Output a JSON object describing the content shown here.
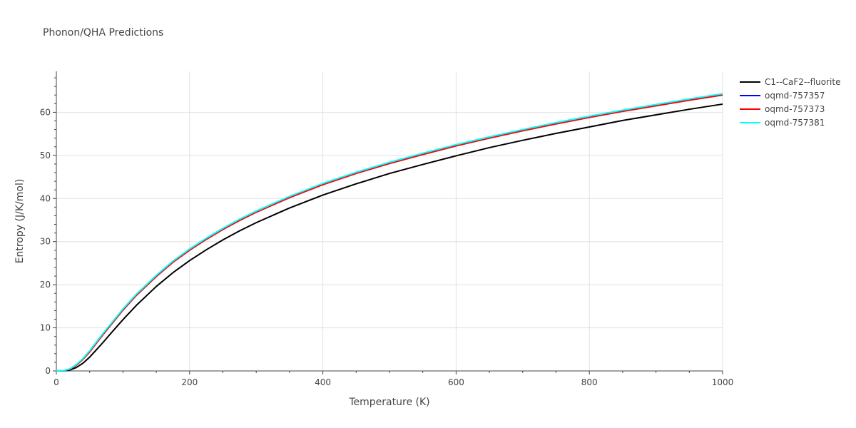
{
  "chart_data": {
    "type": "line",
    "title": "Phonon/QHA Predictions",
    "xlabel": "Temperature (K)",
    "ylabel": "Entropy (J/K/mol)",
    "xlim": [
      0,
      1000
    ],
    "ylim": [
      0,
      69.5
    ],
    "xticks": [
      0,
      200,
      400,
      600,
      800,
      1000
    ],
    "yticks": [
      0,
      10,
      20,
      30,
      40,
      50,
      60
    ],
    "grid": true,
    "legend_position": "top-right",
    "series": [
      {
        "name": "C1--CaF2--fluorite",
        "color": "#000000",
        "x": [
          0,
          10,
          20,
          30,
          40,
          50,
          60,
          70,
          80,
          100,
          120,
          150,
          175,
          200,
          225,
          250,
          275,
          300,
          350,
          400,
          450,
          500,
          550,
          600,
          650,
          700,
          750,
          800,
          850,
          900,
          950,
          1000
        ],
        "y": [
          0,
          0.02,
          0.2,
          0.8,
          1.8,
          3.2,
          4.9,
          6.6,
          8.4,
          11.9,
          15.2,
          19.6,
          22.8,
          25.6,
          28.1,
          30.4,
          32.5,
          34.4,
          37.8,
          40.8,
          43.4,
          45.8,
          47.9,
          49.9,
          51.8,
          53.5,
          55.1,
          56.6,
          58.1,
          59.4,
          60.7,
          61.9
        ]
      },
      {
        "name": "oqmd-757357",
        "color": "#0000ff",
        "x": [
          0,
          10,
          20,
          30,
          40,
          50,
          60,
          70,
          80,
          100,
          120,
          150,
          175,
          200,
          225,
          250,
          275,
          300,
          350,
          400,
          450,
          500,
          550,
          600,
          650,
          700,
          750,
          800,
          850,
          900,
          950,
          1000
        ],
        "y": [
          0,
          0.05,
          0.4,
          1.4,
          2.8,
          4.5,
          6.5,
          8.5,
          10.4,
          14.2,
          17.6,
          22.0,
          25.3,
          28.1,
          30.6,
          32.9,
          35.0,
          36.9,
          40.3,
          43.3,
          45.9,
          48.2,
          50.3,
          52.3,
          54.1,
          55.8,
          57.4,
          58.9,
          60.3,
          61.6,
          62.9,
          64.1
        ]
      },
      {
        "name": "oqmd-757373",
        "color": "#ff0000",
        "x": [
          0,
          10,
          20,
          30,
          40,
          50,
          60,
          70,
          80,
          100,
          120,
          150,
          175,
          200,
          225,
          250,
          275,
          300,
          350,
          400,
          450,
          500,
          550,
          600,
          650,
          700,
          750,
          800,
          850,
          900,
          950,
          1000
        ],
        "y": [
          0,
          0.05,
          0.4,
          1.3,
          2.7,
          4.4,
          6.4,
          8.4,
          10.3,
          14.1,
          17.5,
          21.9,
          25.2,
          28.0,
          30.5,
          32.8,
          34.9,
          36.8,
          40.2,
          43.2,
          45.8,
          48.1,
          50.2,
          52.2,
          54.0,
          55.7,
          57.3,
          58.8,
          60.2,
          61.5,
          62.8,
          64.0
        ]
      },
      {
        "name": "oqmd-757381",
        "color": "#00ffff",
        "x": [
          0,
          10,
          20,
          30,
          40,
          50,
          60,
          70,
          80,
          100,
          120,
          150,
          175,
          200,
          225,
          250,
          275,
          300,
          350,
          400,
          450,
          500,
          550,
          600,
          650,
          700,
          750,
          800,
          850,
          900,
          950,
          1000
        ],
        "y": [
          0,
          0.06,
          0.45,
          1.5,
          2.9,
          4.7,
          6.7,
          8.7,
          10.6,
          14.4,
          17.8,
          22.2,
          25.5,
          28.3,
          30.8,
          33.1,
          35.2,
          37.1,
          40.5,
          43.5,
          46.1,
          48.4,
          50.5,
          52.5,
          54.3,
          56.0,
          57.6,
          59.1,
          60.5,
          61.8,
          63.1,
          64.3
        ]
      }
    ]
  }
}
